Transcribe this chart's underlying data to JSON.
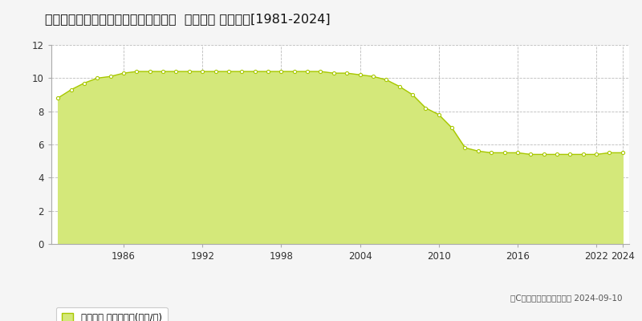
{
  "title": "北海道釧路市緑ケ岡５丁目４７番７８  地価公示 地価推移[1981-2024]",
  "years": [
    1981,
    1982,
    1983,
    1984,
    1985,
    1986,
    1987,
    1988,
    1989,
    1990,
    1991,
    1992,
    1993,
    1994,
    1995,
    1996,
    1997,
    1998,
    1999,
    2000,
    2001,
    2002,
    2003,
    2004,
    2005,
    2006,
    2007,
    2008,
    2009,
    2010,
    2011,
    2012,
    2013,
    2014,
    2015,
    2016,
    2017,
    2018,
    2019,
    2020,
    2021,
    2022,
    2023,
    2024
  ],
  "values": [
    8.8,
    9.3,
    9.7,
    10.0,
    10.1,
    10.3,
    10.4,
    10.4,
    10.4,
    10.4,
    10.4,
    10.4,
    10.4,
    10.4,
    10.4,
    10.4,
    10.4,
    10.4,
    10.4,
    10.4,
    10.4,
    10.3,
    10.3,
    10.2,
    10.1,
    9.9,
    9.5,
    9.0,
    8.2,
    7.8,
    7.0,
    5.8,
    5.6,
    5.5,
    5.5,
    5.5,
    5.4,
    5.4,
    5.4,
    5.4,
    5.4,
    5.4,
    5.5,
    5.5
  ],
  "line_color": "#a8c800",
  "fill_color": "#d4e87a",
  "marker_color": "#ffffff",
  "marker_edge_color": "#a8c800",
  "bg_color": "#f5f5f5",
  "plot_bg_color": "#ffffff",
  "grid_color": "#bbbbbb",
  "ylim": [
    0,
    12
  ],
  "yticks": [
    0,
    2,
    4,
    6,
    8,
    10,
    12
  ],
  "xtick_years": [
    1986,
    1992,
    1998,
    2004,
    2010,
    2016,
    2022,
    2024
  ],
  "legend_label": "地価公示 平均坪単価(万円/坪)",
  "copyright_text": "（C）土地価格ドットコム 2024-09-10",
  "title_fontsize": 11.5,
  "tick_fontsize": 8.5,
  "legend_fontsize": 8.5,
  "copyright_fontsize": 7.5
}
